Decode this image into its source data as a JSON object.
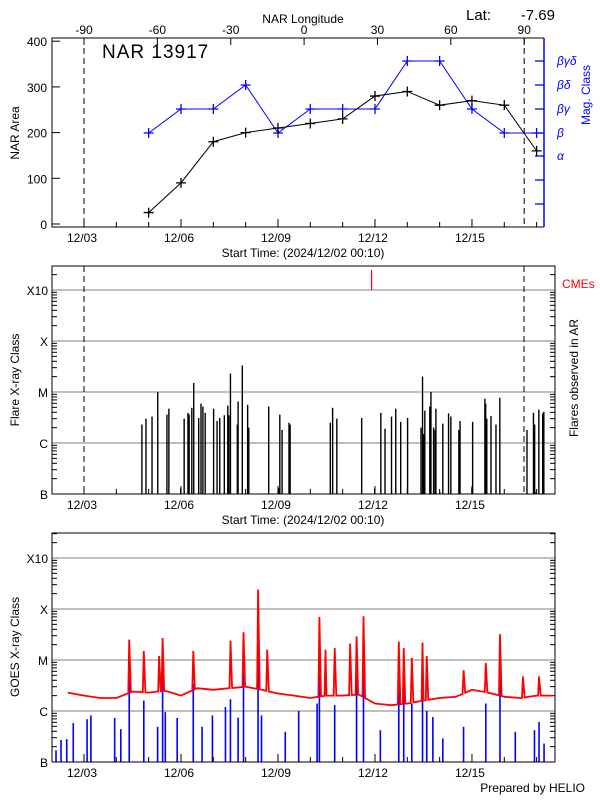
{
  "footer": "Prepared by HELIO",
  "chart_data": [
    {
      "type": "line",
      "title": "NAR 13917",
      "lat_label": "Lat:",
      "lat_value": "-7.69",
      "xlabel": "Start Time: (2024/12/02 00:10)",
      "ylabel": "NAR Area",
      "y2label": "Mag. Class",
      "top_axis_label": "NAR Longitude",
      "top_ticks": [
        "-90",
        "-60",
        "-30",
        "0",
        "30",
        "60",
        "90"
      ],
      "x_ticks": [
        "12/03",
        "12/06",
        "12/09",
        "12/12",
        "12/15"
      ],
      "y_ticks": [
        "0",
        "100",
        "200",
        "300",
        "400"
      ],
      "ylim": [
        0,
        400
      ],
      "y2_ticks": [
        "α",
        "β",
        "βγ",
        "βδ",
        "βγδ"
      ],
      "limb_longitudes": [
        -90,
        90
      ],
      "colors": {
        "area": "#000000",
        "mag_class": "#0000ff"
      },
      "x": [
        "12-05",
        "12-06",
        "12-07",
        "12-08",
        "12-09",
        "12-10",
        "12-11",
        "12-12",
        "12-13",
        "12-14",
        "12-15",
        "12-16",
        "12-17"
      ],
      "series": [
        {
          "values": [
            25,
            90,
            180,
            200,
            210,
            220,
            230,
            280,
            290,
            260,
            270,
            260,
            160
          ]
        },
        {
          "values": [
            "β",
            "βγ",
            "βγ",
            "βδ",
            "β",
            "βγ",
            "βγ",
            "βγ",
            "βγδ",
            "βγδ",
            "βγ",
            "β",
            "β"
          ]
        }
      ]
    },
    {
      "type": "bar",
      "xlabel": "Start Time: (2024/12/02 00:10)",
      "ylabel": "Flare X-ray Class",
      "y2label": "Flares observed in AR",
      "cme_label": "CMEs",
      "x_ticks": [
        "12/03",
        "12/06",
        "12/09",
        "12/12",
        "12/15"
      ],
      "y_ticks": [
        "B",
        "C",
        "M",
        "X",
        "X10"
      ],
      "y_scale": "log",
      "grid": true,
      "colors": {
        "flares": "#000000",
        "cme": "#ff0000"
      },
      "cmes": [
        "12-11 21:30"
      ],
      "flares": [
        [
          "12-04 19:00",
          "C2.3"
        ],
        [
          "12-04 22:00",
          "C3.0"
        ],
        [
          "12-05 02:30",
          "C3.3"
        ],
        [
          "12-05 06:45",
          "M1.0"
        ],
        [
          "12-05 13:34",
          "C3.6"
        ],
        [
          "12-05 15:00",
          "C4.7"
        ],
        [
          "12-05 23:47",
          "B1.3"
        ],
        [
          "12-06 02:21",
          "C3.0"
        ],
        [
          "12-06 05:11",
          "C3.9"
        ],
        [
          "12-06 06:03",
          "C3.6"
        ],
        [
          "12-06 08:02",
          "C4.9"
        ],
        [
          "12-06 09:27",
          "M1.5"
        ],
        [
          "12-06 13:09",
          "C3.1"
        ],
        [
          "12-06 14:51",
          "C5.9"
        ],
        [
          "12-06 16:16",
          "C5.2"
        ],
        [
          "12-06 17:58",
          "C3.9"
        ],
        [
          "12-07 00:13",
          "C4.7"
        ],
        [
          "12-07 02:47",
          "C2.7"
        ],
        [
          "12-07 04:47",
          "C3.1"
        ],
        [
          "12-07 08:10",
          "C3.5"
        ],
        [
          "12-07 10:44",
          "C5.4"
        ],
        [
          "12-07 11:34",
          "C3.5"
        ],
        [
          "12-07 12:43",
          "M2.3"
        ],
        [
          "12-07 17:50",
          "C2.3"
        ],
        [
          "12-07 18:23",
          "C6.5"
        ],
        [
          "12-07 21:31",
          "M3.3"
        ],
        [
          "12-08 01:29",
          "C5.6"
        ],
        [
          "12-08 02:21",
          "C2.0"
        ],
        [
          "12-08 17:07",
          "C5.2"
        ],
        [
          "12-09 00:30",
          "B1.3"
        ],
        [
          "12-09 01:22",
          "C3.6"
        ],
        [
          "12-09 03:04",
          "C1.8"
        ],
        [
          "12-09 08:11",
          "C2.5"
        ],
        [
          "12-09 09:01",
          "C2.3"
        ],
        [
          "12-10 14:51",
          "C2.5"
        ],
        [
          "12-10 16:34",
          "C4.9"
        ],
        [
          "12-10 19:41",
          "C3.0"
        ],
        [
          "12-11 14:08",
          "C3.1"
        ],
        [
          "12-11 23:48",
          "B1.3"
        ],
        [
          "12-12 04:21",
          "C3.9"
        ],
        [
          "12-12 07:28",
          "C1.9"
        ],
        [
          "12-12 12:17",
          "C3.3"
        ],
        [
          "12-12 15:26",
          "C4.7"
        ],
        [
          "12-12 19:06",
          "C2.6"
        ],
        [
          "12-13 00:13",
          "C3.1"
        ],
        [
          "12-13 10:10",
          "C2.0"
        ],
        [
          "12-13 11:18",
          "M2.0"
        ],
        [
          "12-13 12:10",
          "C1.5"
        ],
        [
          "12-13 13:00",
          "C4.3"
        ],
        [
          "12-13 16:42",
          "C5.2"
        ],
        [
          "12-13 17:33",
          "M1.0"
        ],
        [
          "12-13 19:32",
          "C2.0"
        ],
        [
          "12-13 20:40",
          "C1.8"
        ],
        [
          "12-13 21:14",
          "C4.7"
        ],
        [
          "12-14 00:06",
          "B1.1"
        ],
        [
          "12-14 02:21",
          "C2.4"
        ],
        [
          "12-14 06:37",
          "C3.8"
        ],
        [
          "12-14 08:20",
          "C3.3"
        ],
        [
          "12-14 14:17",
          "C1.8"
        ],
        [
          "12-14 15:09",
          "C2.7"
        ],
        [
          "12-14 23:57",
          "B1.3"
        ],
        [
          "12-15 00:30",
          "C2.6"
        ],
        [
          "12-15 09:36",
          "C7.4"
        ],
        [
          "12-15 10:11",
          "C5.9"
        ],
        [
          "12-15 11:01",
          "C3.0"
        ],
        [
          "12-15 14:08",
          "C3.4"
        ],
        [
          "12-15 17:50",
          "C2.3"
        ],
        [
          "12-15 20:41",
          "C7.7"
        ],
        [
          "12-16 16:51",
          "C1.8"
        ],
        [
          "12-16 21:40",
          "C3.9"
        ],
        [
          "12-16 22:32",
          "C2.3"
        ],
        [
          "12-16 23:40",
          "B1.1"
        ],
        [
          "12-17 01:39",
          "C4.5"
        ],
        [
          "12-17 04:29",
          "C3.8"
        ],
        [
          "12-17 05:21",
          "C4.1"
        ]
      ]
    },
    {
      "type": "line",
      "ylabel": "GOES X-ray Class",
      "x_ticks": [
        "12/03",
        "12/06",
        "12/09",
        "12/12",
        "12/15"
      ],
      "y_ticks": [
        "B",
        "C",
        "M",
        "X",
        "X10"
      ],
      "y_scale": "log",
      "grid": true,
      "colors": {
        "long_channel": "#ff0000",
        "short_channel": "#0000ff"
      },
      "long_channel_baseline": [
        [
          "12-02 00:00",
          "C1.8"
        ],
        [
          "12-02 12:00",
          "C2.3"
        ],
        [
          "12-03 00:00",
          "C2.0"
        ],
        [
          "12-03 12:00",
          "C1.8"
        ],
        [
          "12-04 00:00",
          "C1.8"
        ],
        [
          "12-04 12:00",
          "C2.4"
        ],
        [
          "12-05 00:00",
          "C2.3"
        ],
        [
          "12-05 12:00",
          "C2.5"
        ],
        [
          "12-06 00:00",
          "C2.0"
        ],
        [
          "12-06 12:00",
          "C2.8"
        ],
        [
          "12-07 00:00",
          "C2.6"
        ],
        [
          "12-07 12:00",
          "C2.8"
        ],
        [
          "12-08 00:00",
          "C3.0"
        ],
        [
          "12-08 12:00",
          "C2.6"
        ],
        [
          "12-09 00:00",
          "C2.2"
        ],
        [
          "12-09 12:00",
          "C2.0"
        ],
        [
          "12-10 00:00",
          "C1.8"
        ],
        [
          "12-10 12:00",
          "C2.0"
        ],
        [
          "12-11 00:00",
          "C2.0"
        ],
        [
          "12-11 12:00",
          "C2.1"
        ],
        [
          "12-12 00:00",
          "C1.4"
        ],
        [
          "12-12 12:00",
          "C1.3"
        ],
        [
          "12-13 00:00",
          "C1.4"
        ],
        [
          "12-13 12:00",
          "C1.6"
        ],
        [
          "12-14 00:00",
          "C1.8"
        ],
        [
          "12-14 12:00",
          "C1.9"
        ],
        [
          "12-15 00:00",
          "C2.6"
        ],
        [
          "12-15 12:00",
          "C2.3"
        ],
        [
          "12-16 00:00",
          "C1.9"
        ],
        [
          "12-16 12:00",
          "C1.8"
        ],
        [
          "12-17 00:00",
          "C2.0"
        ],
        [
          "12-17 12:00",
          "C2.0"
        ]
      ],
      "long_channel_peaks": [
        [
          "12-04 09:35",
          "M2.5"
        ],
        [
          "12-04 20:24",
          "M1.5"
        ],
        [
          "12-05 07:47",
          "M1.2"
        ],
        [
          "12-05 10:21",
          "M2.7"
        ],
        [
          "12-06 09:07",
          "M1.5"
        ],
        [
          "12-07 12:43",
          "M2.4"
        ],
        [
          "12-07 22:24",
          "M3.5"
        ],
        [
          "12-08 09:13",
          "X2.4"
        ],
        [
          "12-08 16:02",
          "M1.6"
        ],
        [
          "12-10 06:45",
          "M7.0"
        ],
        [
          "12-10 11:18",
          "M1.6"
        ],
        [
          "12-10 18:07",
          "M1.7"
        ],
        [
          "12-11 05:31",
          "M2.1"
        ],
        [
          "12-11 10:21",
          "M2.9"
        ],
        [
          "12-11 15:29",
          "M7.2"
        ],
        [
          "12-12 17:40",
          "M2.3"
        ],
        [
          "12-12 21:21",
          "M1.7"
        ],
        [
          "12-13 03:20",
          "M1.1"
        ],
        [
          "12-13 11:18",
          "M2.2"
        ],
        [
          "12-13 14:25",
          "M1.2"
        ],
        [
          "12-14 17:46",
          "C6.3"
        ],
        [
          "12-15 10:16",
          "C8.7"
        ],
        [
          "12-15 20:47",
          "M3.2"
        ],
        [
          "12-16 13:51",
          "C4.8"
        ],
        [
          "12-17 01:48",
          "C4.8"
        ]
      ],
      "short_channel_peaks": [
        [
          "12-02 03:13",
          "B1.7"
        ],
        [
          "12-02 06:56",
          "B2.7"
        ],
        [
          "12-02 11:11",
          "B2.8"
        ],
        [
          "12-02 16:02",
          "B5.8"
        ],
        [
          "12-03 02:17",
          "B6.9"
        ],
        [
          "12-03 05:07",
          "B8.2"
        ],
        [
          "12-03 22:46",
          "B7.3"
        ],
        [
          "12-04 03:19",
          "B4.4"
        ],
        [
          "12-04 09:35",
          "C4.3"
        ],
        [
          "12-04 20:24",
          "C1.6"
        ],
        [
          "12-05 06:39",
          "B4.9"
        ],
        [
          "12-05 10:21",
          "C5.4"
        ],
        [
          "12-05 12:20",
          "B9.5"
        ],
        [
          "12-05 21:10",
          "B7.3"
        ],
        [
          "12-06 09:07",
          "C3.4"
        ],
        [
          "12-06 15:39",
          "B4.9"
        ],
        [
          "12-06 23:20",
          "B8.2"
        ],
        [
          "12-07 09:01",
          "C1.2"
        ],
        [
          "12-07 12:43",
          "C1.7"
        ],
        [
          "12-07 18:24",
          "B7.4"
        ],
        [
          "12-07 22:24",
          "C6.8"
        ],
        [
          "12-08 09:13",
          "M8.7"
        ],
        [
          "12-08 11:46",
          "B8.2"
        ],
        [
          "12-09 05:25",
          "B3.9"
        ],
        [
          "12-09 15:23",
          "C1.0"
        ],
        [
          "12-10 05:02",
          "C1.4"
        ],
        [
          "12-10 06:45",
          "M1.4"
        ],
        [
          "12-10 18:07",
          "C1.3"
        ],
        [
          "12-11 10:21",
          "C5.8"
        ],
        [
          "12-11 15:29",
          "M1.9"
        ],
        [
          "12-12 04:00",
          "B4.2"
        ],
        [
          "12-12 17:40",
          "C4.6"
        ],
        [
          "12-12 21:21",
          "C3.4"
        ],
        [
          "12-13 03:20",
          "C1.4"
        ],
        [
          "12-13 11:18",
          "C6.8"
        ],
        [
          "12-13 14:25",
          "C1.0"
        ],
        [
          "12-13 18:59",
          "B7.6"
        ],
        [
          "12-14 02:22",
          "B2.9"
        ],
        [
          "12-14 17:46",
          "B4.9"
        ],
        [
          "12-15 10:16",
          "C1.4"
        ],
        [
          "12-15 20:47",
          "C7.1"
        ],
        [
          "12-16 08:10",
          "B3.9"
        ],
        [
          "12-16 22:24",
          "B4.2"
        ],
        [
          "12-17 01:48",
          "B6.1"
        ],
        [
          "12-17 05:31",
          "B2.3"
        ]
      ]
    }
  ]
}
